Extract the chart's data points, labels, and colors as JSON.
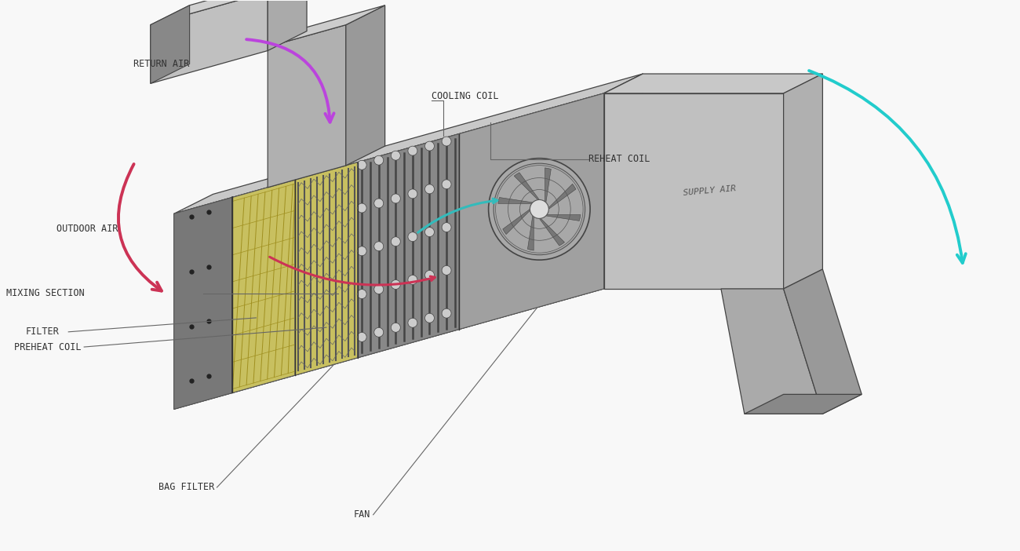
{
  "bg": "#f5f5f5",
  "label_color": "#333333",
  "font_size": 8.5,
  "arrow_return_color": "#bb44dd",
  "arrow_outdoor_color": "#cc3355",
  "arrow_supply_color": "#22cccc",
  "arrow_warm_color": "#cc3355",
  "arrow_cool_color": "#33bbbb",
  "labels": {
    "return_air": "RETURN AIR",
    "outdoor_air": "OUTDOOR AIR",
    "mixing_section": "MIXING SECTION",
    "filter": "FILTER",
    "preheat_coil": "PREHEAT COIL",
    "bag_filter": "BAG FILTER",
    "fan": "FAN",
    "cooling_coil": "COOLING COIL",
    "reheat_coil": "REHEAT COIL",
    "supply_air": "SUPPLY AIR"
  }
}
